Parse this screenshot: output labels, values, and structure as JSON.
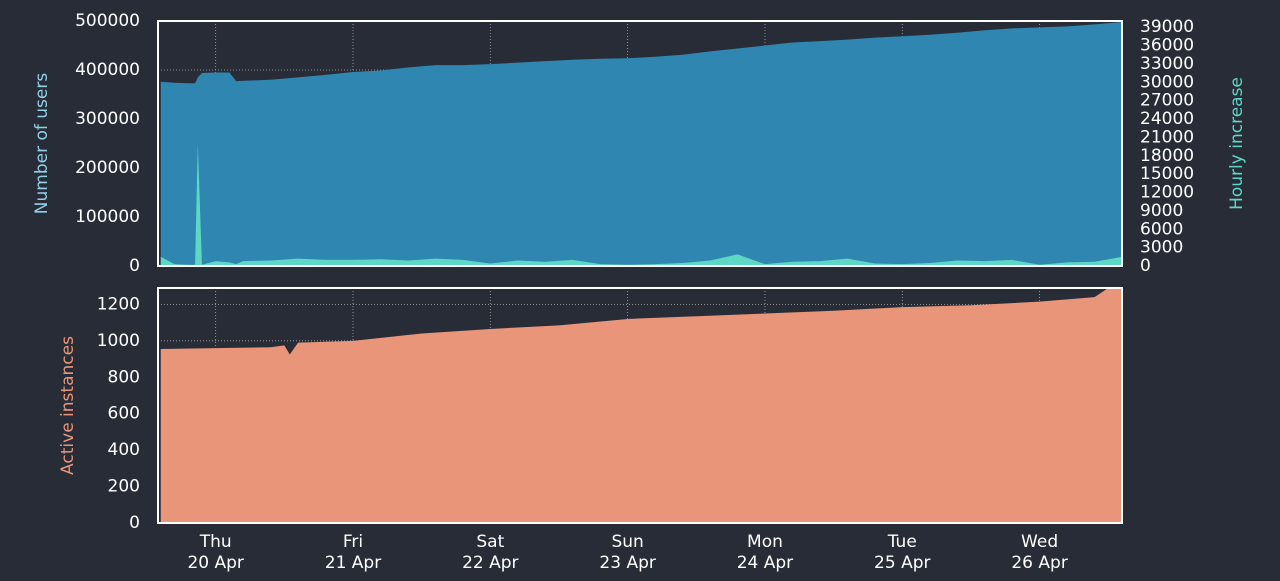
{
  "chart_data": [
    {
      "type": "area",
      "x": [
        19.6,
        19.7,
        19.8,
        19.85,
        19.87,
        19.9,
        20.0,
        20.1,
        20.15,
        20.2,
        20.4,
        20.6,
        20.8,
        21.0,
        21.2,
        21.4,
        21.6,
        21.8,
        22.0,
        22.2,
        22.4,
        22.6,
        22.8,
        23.0,
        23.2,
        23.4,
        23.6,
        23.8,
        24.0,
        24.2,
        24.4,
        24.6,
        24.8,
        25.0,
        25.2,
        25.4,
        25.6,
        25.8,
        26.0,
        26.2,
        26.4,
        26.6
      ],
      "series": [
        {
          "name": "Number of users",
          "color": "#2e86b1",
          "axis": "y",
          "values": [
            376000,
            374000,
            373000,
            373000,
            385000,
            394000,
            395000,
            395000,
            377000,
            378000,
            380000,
            385000,
            390000,
            396000,
            399000,
            405000,
            410000,
            410000,
            412000,
            415000,
            418000,
            421000,
            423000,
            424000,
            427000,
            431000,
            438000,
            444000,
            450000,
            456000,
            459000,
            462000,
            466000,
            469000,
            472000,
            476000,
            481000,
            485000,
            487000,
            489000,
            493000,
            498000
          ]
        },
        {
          "name": "Hourly increase",
          "color": "#5fd7c6",
          "axis": "y2",
          "values": [
            1500,
            300,
            200,
            200,
            20000,
            200,
            800,
            600,
            300,
            800,
            900,
            1200,
            1000,
            1000,
            1100,
            900,
            1200,
            1000,
            400,
            900,
            700,
            1000,
            300,
            200,
            300,
            500,
            900,
            1900,
            300,
            700,
            800,
            1200,
            400,
            300,
            500,
            900,
            800,
            1000,
            200,
            600,
            700,
            1500
          ]
        }
      ],
      "ylabel": "Number of users",
      "y2label": "Hourly increase",
      "xlim": [
        19.58,
        26.6
      ],
      "xticks": [
        20,
        21,
        22,
        23,
        24,
        25,
        26
      ],
      "ylim": [
        0,
        500000
      ],
      "yticks": [
        0,
        100000,
        200000,
        300000,
        400000,
        500000
      ],
      "y2lim": [
        0,
        40000
      ],
      "y2ticks": [
        0,
        3000,
        6000,
        9000,
        12000,
        15000,
        18000,
        21000,
        24000,
        27000,
        30000,
        33000,
        36000,
        39000
      ],
      "grid": true
    },
    {
      "type": "area",
      "x": [
        19.6,
        20.0,
        20.4,
        20.5,
        20.54,
        20.6,
        21.0,
        21.5,
        22.0,
        22.5,
        23.0,
        23.5,
        24.0,
        24.5,
        25.0,
        25.5,
        26.0,
        26.4,
        26.5,
        26.6
      ],
      "series": [
        {
          "name": "Active instances",
          "color": "#e8957a",
          "axis": "y",
          "values": [
            955,
            960,
            965,
            975,
            925,
            990,
            1000,
            1040,
            1065,
            1085,
            1120,
            1135,
            1150,
            1165,
            1185,
            1195,
            1215,
            1240,
            1290,
            1290
          ]
        }
      ],
      "ylabel": "Active instances",
      "xlim": [
        19.58,
        26.6
      ],
      "xticks": [
        {
          "value": 20,
          "label": "Thu\n20 Apr"
        },
        {
          "value": 21,
          "label": "Fri\n21 Apr"
        },
        {
          "value": 22,
          "label": "Sat\n22 Apr"
        },
        {
          "value": 23,
          "label": "Sun\n23 Apr"
        },
        {
          "value": 24,
          "label": "Mon\n24 Apr"
        },
        {
          "value": 25,
          "label": "Tue\n25 Apr"
        },
        {
          "value": 26,
          "label": "Wed\n26 Apr"
        }
      ],
      "ylim": [
        0,
        1290
      ],
      "yticks": [
        0,
        200,
        400,
        600,
        800,
        1000,
        1200
      ],
      "grid": true
    }
  ]
}
